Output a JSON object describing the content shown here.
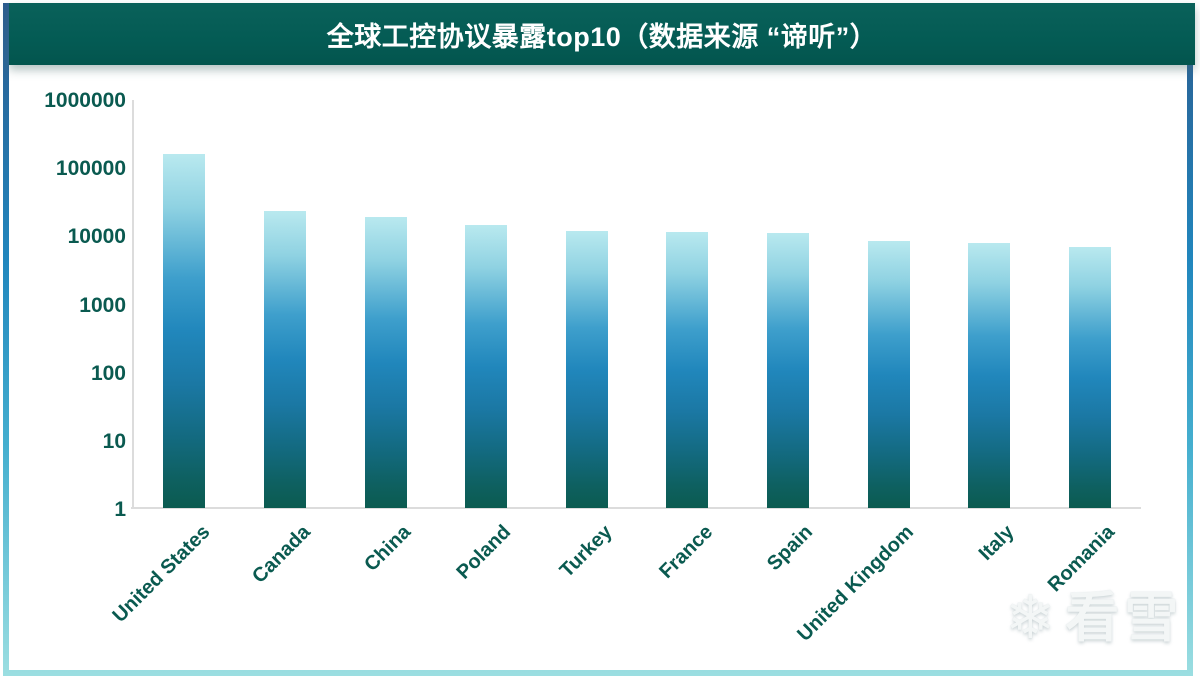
{
  "header": {
    "title": "全球工控协议暴露top10（数据来源 “谛听”）"
  },
  "chart_data": {
    "type": "bar",
    "title": "全球工控协议暴露top10（数据来源 “谛听”）",
    "categories": [
      "United States",
      "Canada",
      "China",
      "Poland",
      "Turkey",
      "France",
      "Spain",
      "United Kingdom",
      "Italy",
      "Romania"
    ],
    "values": [
      160000,
      23000,
      19000,
      14500,
      12000,
      11500,
      11000,
      8500,
      7800,
      7000
    ],
    "y_scale": "log10",
    "ylim": [
      1,
      1000000
    ],
    "y_ticks": [
      "1000000",
      "100000",
      "10000",
      "1000",
      "100",
      "10",
      "1"
    ],
    "xlabel": "",
    "ylabel": "",
    "grid": false,
    "legend": false
  },
  "watermark": {
    "snowflake_icon": "❄",
    "text": "看雪"
  },
  "colors": {
    "header_bg": "#045b54",
    "axis_text": "#0a5a50",
    "axis_line": "#dcdcdc",
    "bar_gradient_top": "#b9e9ef",
    "bar_gradient_mid": "#2187bc",
    "bar_gradient_bottom": "#0b5b50",
    "frame_gradient_top": "#2c5c8f",
    "frame_gradient_mid": "#2186bd",
    "frame_gradient_bottom": "#9bdee1"
  }
}
